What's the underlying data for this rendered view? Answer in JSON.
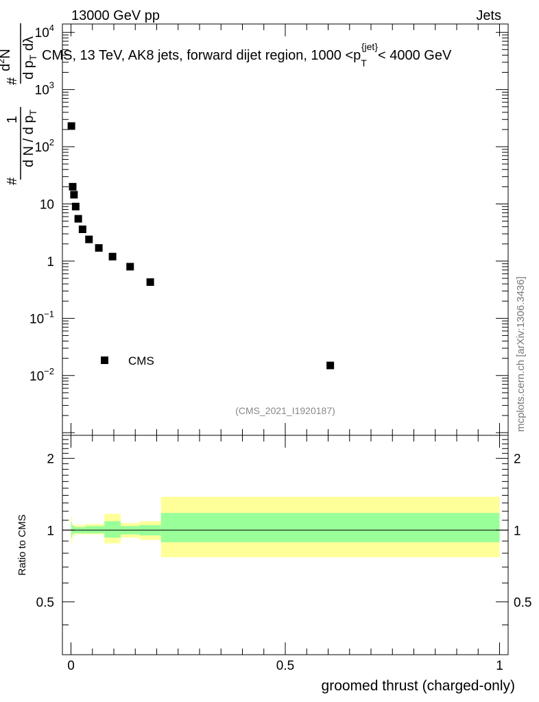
{
  "header": {
    "left": "13000 GeV pp",
    "right": "Jets"
  },
  "side_label": "mcplots.cern.ch [arXiv:1306.3436]",
  "colors": {
    "band_outer": "#ffff99",
    "band_inner": "#99ff99",
    "marker": "#000000",
    "analysis_id": "#888888"
  },
  "chart_data": [
    {
      "type": "scatter",
      "panel": "main",
      "title": "CMS, 13 TeV, AK8 jets, forward dijet region, 1000 <p_T^{jet}< 4000 GeV",
      "title_main": "CMS, 13 TeV, AK8 jets, forward dijet region, 1000 <p",
      "title_sub": "T",
      "title_sup": "{jet}",
      "title_end": "< 4000 GeV",
      "ylabel": "1/(dN/dp_T) d^2N/(dp_T dλ)",
      "ylabel_parts": {
        "one": "1",
        "den_d1": "d N / d p",
        "den_T": "T",
        "num": "d",
        "num_sup": "2",
        "num_N": "N",
        "num_den": "d p",
        "num_den_T": "T",
        "num_den_rest": " d",
        "lambda": "λ",
        "hash": "#"
      },
      "yscale": "log",
      "ylim": [
        0.0009,
        14000
      ],
      "xlim": [
        -0.02,
        1.02
      ],
      "ytick_labels": [
        {
          "value": 10000,
          "base": "10",
          "exp": "4"
        },
        {
          "value": 1000,
          "base": "10",
          "exp": "3"
        },
        {
          "value": 100,
          "base": "10",
          "exp": "2"
        },
        {
          "value": 10,
          "base": "10",
          "exp": ""
        },
        {
          "value": 1,
          "base": "1",
          "exp": ""
        },
        {
          "value": 0.1,
          "base": "10",
          "exp": "−1"
        },
        {
          "value": 0.01,
          "base": "10",
          "exp": "−2"
        }
      ],
      "series": [
        {
          "name": "CMS",
          "x": [
            0.001,
            0.004,
            0.007,
            0.011,
            0.017,
            0.027,
            0.042,
            0.065,
            0.097,
            0.138,
            0.185,
            0.605
          ],
          "y": [
            230,
            20,
            14.5,
            9,
            5.5,
            3.6,
            2.4,
            1.7,
            1.2,
            0.8,
            0.43,
            0.015
          ]
        }
      ],
      "legend": {
        "label": "CMS",
        "position": "lower-left"
      },
      "annotation": "(CMS_2021_I1920187)"
    },
    {
      "type": "area",
      "panel": "ratio",
      "ylabel": "Ratio to CMS",
      "xlabel": "groomed thrust (charged-only)",
      "xlim": [
        -0.02,
        1.02
      ],
      "ylim": [
        0.3,
        2.5
      ],
      "yscale": "log",
      "ytick_labels": [
        {
          "value": 2,
          "label": "2"
        },
        {
          "value": 1,
          "label": "1"
        },
        {
          "value": 0.5,
          "label": "0.5"
        }
      ],
      "xtick_labels": [
        {
          "value": 0,
          "label": "0"
        },
        {
          "value": 0.5,
          "label": "0.5"
        },
        {
          "value": 1,
          "label": "1"
        }
      ],
      "bins": [
        0,
        0.002,
        0.005,
        0.009,
        0.014,
        0.022,
        0.034,
        0.052,
        0.078,
        0.116,
        0.16,
        0.21,
        1.0
      ],
      "outer_lo": [
        0.88,
        0.93,
        0.95,
        0.96,
        0.96,
        0.96,
        0.96,
        0.96,
        0.88,
        0.93,
        0.91,
        0.77
      ],
      "outer_hi": [
        1.14,
        1.07,
        1.05,
        1.05,
        1.05,
        1.05,
        1.06,
        1.06,
        1.17,
        1.07,
        1.09,
        1.38
      ],
      "inner_lo": [
        0.93,
        0.96,
        0.97,
        0.97,
        0.97,
        0.97,
        0.97,
        0.97,
        0.93,
        0.96,
        0.95,
        0.89
      ],
      "inner_hi": [
        1.08,
        1.05,
        1.04,
        1.03,
        1.03,
        1.03,
        1.04,
        1.04,
        1.09,
        1.04,
        1.05,
        1.18
      ],
      "reference": 1
    }
  ]
}
